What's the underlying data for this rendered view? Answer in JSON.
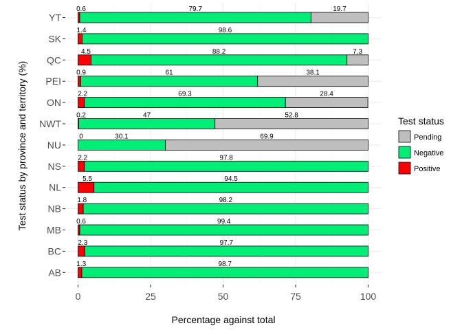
{
  "chart_data": {
    "type": "bar",
    "orientation": "horizontal",
    "stacked": true,
    "categories": [
      "YT",
      "SK",
      "QC",
      "PEI",
      "ON",
      "NWT",
      "NU",
      "NS",
      "NL",
      "NB",
      "MB",
      "BC",
      "AB"
    ],
    "series": [
      {
        "name": "Positive",
        "color": "#ff0000",
        "values": [
          0.6,
          1.4,
          4.5,
          0.9,
          2.2,
          0.2,
          0,
          2.2,
          5.5,
          1.8,
          0.6,
          2.3,
          1.3
        ]
      },
      {
        "name": "Negative",
        "color": "#00ee76",
        "values": [
          79.7,
          98.6,
          88.2,
          61,
          69.3,
          47,
          30.1,
          97.8,
          94.5,
          98.2,
          99.4,
          97.7,
          98.7
        ]
      },
      {
        "name": "Pending",
        "color": "#bebebe",
        "values": [
          19.7,
          null,
          7.3,
          38.1,
          28.4,
          52.8,
          69.9,
          null,
          null,
          null,
          null,
          null,
          null
        ]
      }
    ],
    "value_labels": [
      [
        "0.6",
        "79.7",
        "19.7"
      ],
      [
        "1.4",
        "98.6",
        ""
      ],
      [
        "4.5",
        "88.2",
        "7.3"
      ],
      [
        "0.9",
        "61",
        "38.1"
      ],
      [
        "2.2",
        "69.3",
        "28.4"
      ],
      [
        "0.2",
        "47",
        "52.8"
      ],
      [
        "0",
        "30.1",
        "69.9"
      ],
      [
        "2.2",
        "97.8",
        ""
      ],
      [
        "5.5",
        "94.5",
        ""
      ],
      [
        "1.8",
        "98.2",
        ""
      ],
      [
        "0.6",
        "99.4",
        ""
      ],
      [
        "2.3",
        "97.7",
        ""
      ],
      [
        "1.3",
        "98.7",
        ""
      ]
    ],
    "xlabel": "Percentage against total",
    "ylabel": "Test status by province and territory (%)",
    "xlim": [
      0,
      100
    ],
    "xticks": [
      "0",
      "25",
      "50",
      "75",
      "100"
    ],
    "grid": true,
    "legend": {
      "title": "Test status",
      "placement": "right",
      "entries": [
        {
          "name": "Pending",
          "color": "#bebebe"
        },
        {
          "name": "Negative",
          "color": "#00ee76"
        },
        {
          "name": "Positive",
          "color": "#ff0000"
        }
      ]
    }
  }
}
